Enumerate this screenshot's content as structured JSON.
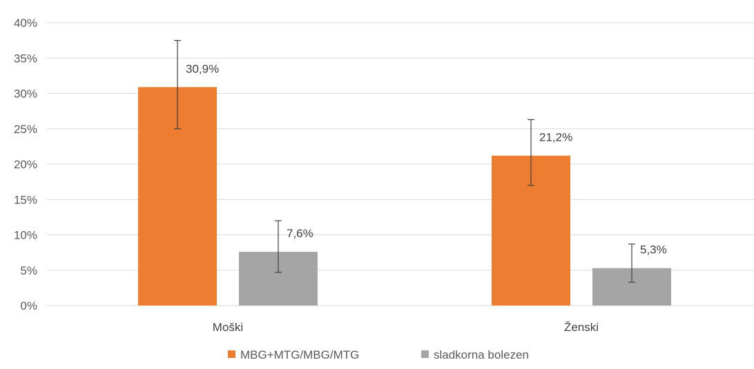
{
  "chart_data": {
    "type": "bar",
    "title": "",
    "xlabel": "",
    "ylabel": "",
    "categories": [
      "Moški",
      "Ženski"
    ],
    "ylim": [
      0,
      40
    ],
    "yticks": [
      0,
      5,
      10,
      15,
      20,
      25,
      30,
      35,
      40
    ],
    "tick_suffix": "%",
    "series": [
      {
        "name": "MBG+MTG/MBG/MTG",
        "color": "#ed7d31",
        "values": [
          30.9,
          21.2
        ],
        "labels": [
          "30,9%",
          "21,2%"
        ],
        "error_low": [
          25.0,
          17.0
        ],
        "error_high": [
          37.5,
          26.3
        ]
      },
      {
        "name": "sladkorna bolezen",
        "color": "#a5a5a5",
        "values": [
          7.6,
          5.3
        ],
        "labels": [
          "7,6%",
          "5,3%"
        ],
        "error_low": [
          4.7,
          3.3
        ],
        "error_high": [
          12.0,
          8.7
        ]
      }
    ],
    "grid": true,
    "legend_position": "bottom"
  }
}
